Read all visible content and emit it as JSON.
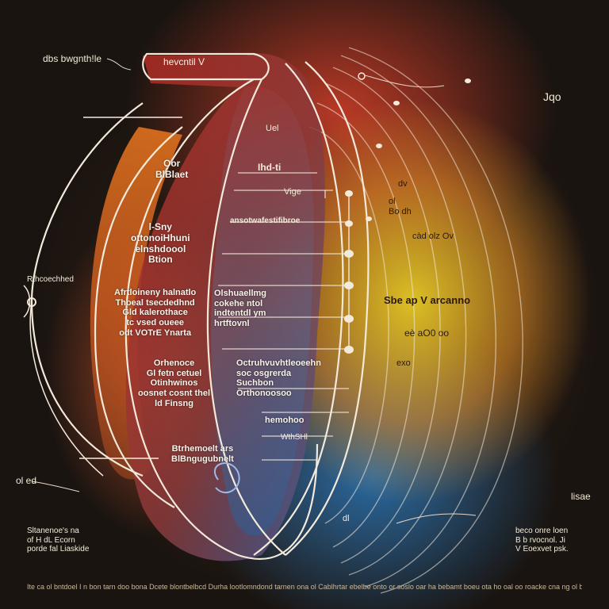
{
  "labels": {
    "top_left_tag": "dbs bwgnth!le",
    "top_banner": "hevcntil V",
    "top_right_mark": "Jqo",
    "left_mid_tag": "Rthcoechhed",
    "left_bottom_tag": "ol ed",
    "right_bottom_tag": "lisae",
    "col_head_1": "Oor\nBlBlaet",
    "col_head_2": "l-Sny\nottonoiHhuni\nelnshdoool\nBtion",
    "col_head_3": "Afrtloineny halnatlo\nThoeal tsecdedhnd\nGld kalerothace\ntc vsed oueee\nodt VOTrE Ynarta",
    "col_head_4": "Orhenoce\nGl fetn cetuel\nOtinhwinos\noosnet cosnt thel\nld Finsng",
    "col_head_5": "Btrhemoelt ars\nBlBngugubnelt",
    "mid_1": "Uel",
    "mid_2": "Ihd-ti",
    "mid_3": "Vige",
    "mid_4": "ansotwafestifibroe",
    "mid_5": "Olshuaellmg\ncokehe ntol\nindtentdl ym\nhrtftovnl",
    "mid_6": "Octruhvuvhtleoeehn\nsoc osgrerda\nSuchbon\nOrthonoosoo",
    "mid_7": "hemohoo",
    "mid_8": "WthSHl",
    "right_1": "dv",
    "right_2": "ol\nBo dh",
    "right_3": "càd olz Ov",
    "right_4": "Sbe ap V arcanno",
    "right_5": "eè aO0 oo",
    "right_6": "exo",
    "right_7": "dl",
    "left_footer_block": "Sltanenoe's na\nof H dL Ecorn\nporde fal Liaskide",
    "right_footer_block": "beco onre loen\nB b rvocnol. Ji\nV Eoexvet psk.",
    "footer": "Ite ca ol bntdoel I n bon tarn doo bona Dcete blontbelbcd Durha lootlomndond tarnen ona ol Cablhrtar ebelbe onto or soslo oar ha bebamt boeu ota ho oal oo roacke cna ng ol badtornsm bodeow DB. Dl"
  },
  "colors": {
    "line": "#f4eadb",
    "accent_red": "#c8392a",
    "accent_yellow": "#f4d83a",
    "accent_blue": "#2f6fa8"
  }
}
